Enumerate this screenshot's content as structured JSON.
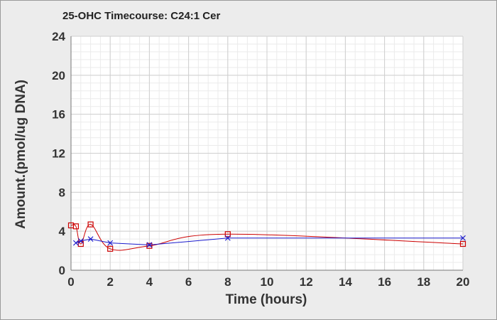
{
  "chart_data": {
    "type": "line",
    "title": "25-OHC Timecourse: C24:1 Cer",
    "xlabel": "Time (hours)",
    "ylabel": "Amount.(pmol/ug DNA)",
    "xlim": [
      0,
      20
    ],
    "ylim": [
      0,
      24
    ],
    "x_ticks": [
      0,
      2,
      4,
      6,
      8,
      10,
      12,
      14,
      16,
      18,
      20
    ],
    "y_ticks": [
      0,
      4,
      8,
      12,
      16,
      20,
      24
    ],
    "grid": true,
    "series": [
      {
        "color": "#cc0000",
        "marker": "square",
        "smooth": true,
        "x": [
          0,
          0.25,
          0.5,
          1,
          2,
          4,
          8,
          20
        ],
        "y": [
          4.6,
          4.5,
          2.7,
          4.7,
          2.2,
          2.5,
          3.7,
          2.7
        ]
      },
      {
        "color": "#1a1acc",
        "marker": "x",
        "smooth": false,
        "x": [
          0.25,
          0.5,
          1,
          2,
          4,
          8,
          20
        ],
        "y": [
          2.8,
          3.0,
          3.2,
          2.8,
          2.6,
          3.3,
          3.3
        ]
      }
    ]
  }
}
